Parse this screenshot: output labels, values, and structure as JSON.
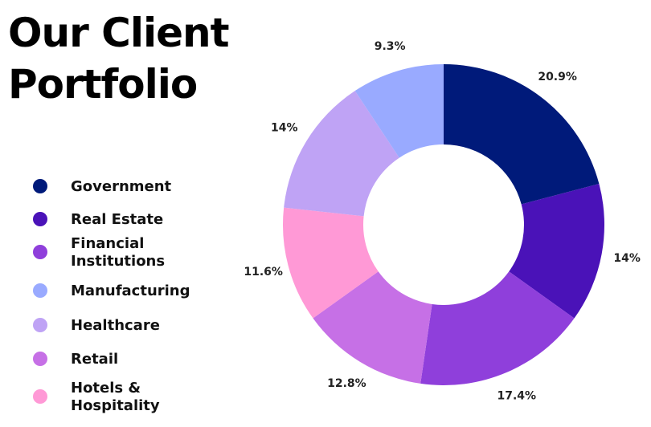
{
  "chart_data": {
    "type": "donut",
    "title": "Our Client Portfolio",
    "values": [
      20.9,
      14,
      17.4,
      12.8,
      11.6,
      14,
      9.3
    ],
    "value_labels": [
      "20.9%",
      "14%",
      "17.4%",
      "12.8%",
      "11.6%",
      "14%",
      "9.3%"
    ],
    "colors": [
      "#001a7a",
      "#4a12b8",
      "#8f3fdb",
      "#c670e6",
      "#ff99d6",
      "#bfa3f5",
      "#99aaff"
    ],
    "legend": [
      {
        "label": "Government",
        "color": "#001a7a"
      },
      {
        "label": "Real Estate",
        "color": "#4a12b8"
      },
      {
        "label": "Financial Institutions",
        "color": "#8f3fdb"
      },
      {
        "label": "Manufacturing",
        "color": "#99aaff"
      },
      {
        "label": "Healthcare",
        "color": "#bfa3f5"
      },
      {
        "label": "Retail",
        "color": "#c670e6"
      },
      {
        "label": "Hotels & Hospitality",
        "color": "#ff99d6"
      }
    ]
  }
}
